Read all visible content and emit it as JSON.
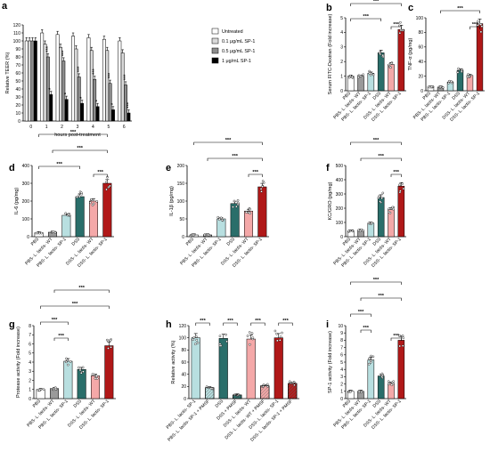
{
  "colors": [
    "#ffffff",
    "#9a9a9a",
    "#b8dfe0",
    "#2a6e6a",
    "#f4a8a8",
    "#b01818"
  ],
  "xcats": [
    "PBS",
    "PBS- L. lactis- WT",
    "PBS- L. lactis- SP-1",
    "DSS",
    "DSS- L. lactis- WT",
    "DSS- L. lactis- SP-1"
  ],
  "hcats": [
    "PBS- L. lactis- SP-1",
    "PBS- L. lactis- SP-1 + PMSF",
    "DSS",
    "DSS + PMSF",
    "DSS- L. lactis- WT",
    "DSS- L. lactis- WT + PMSF",
    "DSS- L. lactis- SP-1",
    "DSS- L. lactis- SP-1 + PMSF"
  ],
  "sig": "***",
  "chart_data": [
    {
      "panel": "a",
      "type": "bar",
      "ylabel": "Relative TEER (%)",
      "xlabel": "hours post-treatment",
      "ylim": [
        0,
        120
      ],
      "yticks": [
        0,
        10,
        20,
        30,
        40,
        50,
        60,
        70,
        80,
        90,
        100,
        110,
        120
      ],
      "categories": [
        "0",
        "1",
        "2",
        "3",
        "4",
        "5",
        "6"
      ],
      "series": [
        {
          "name": "Untreated",
          "values": [
            100,
            110,
            108,
            106,
            104,
            102,
            100
          ]
        },
        {
          "name": "0.1 μg/mL SP-1",
          "values": [
            100,
            96,
            92,
            90,
            88,
            88,
            85
          ]
        },
        {
          "name": "0.5 μg/mL SP-1",
          "values": [
            100,
            80,
            75,
            55,
            52,
            47,
            45
          ]
        },
        {
          "name": "1 μg/mL SP-1",
          "values": [
            100,
            33,
            27,
            22,
            18,
            14,
            10
          ]
        }
      ],
      "annotations": [
        "***",
        "*",
        "***",
        "*",
        "***",
        "*",
        "***",
        "*",
        "***",
        "*",
        "***",
        "***"
      ]
    },
    {
      "panel": "b",
      "type": "bar",
      "ylabel": "Serum FITC-Dextran (Fold increase)",
      "ylim": [
        0,
        5
      ],
      "yticks": [
        0,
        1,
        2,
        3,
        4,
        5
      ],
      "values": [
        1.0,
        1.0,
        1.2,
        2.6,
        1.8,
        4.2
      ]
    },
    {
      "panel": "c",
      "type": "bar",
      "ylabel": "TNF-α (pg/mg)",
      "ylim": [
        0,
        100
      ],
      "yticks": [
        0,
        20,
        40,
        60,
        80,
        100
      ],
      "values": [
        5,
        5,
        12,
        28,
        21,
        92
      ]
    },
    {
      "panel": "d",
      "type": "bar",
      "ylabel": "IL-6 (pg/mg)",
      "ylim": [
        0,
        400
      ],
      "yticks": [
        0,
        100,
        200,
        300,
        400
      ],
      "values": [
        22,
        25,
        120,
        225,
        200,
        300
      ]
    },
    {
      "panel": "e",
      "type": "bar",
      "ylabel": "IL-1β (pg/mg)",
      "ylim": [
        0,
        200
      ],
      "yticks": [
        0,
        50,
        100,
        150,
        200
      ],
      "values": [
        5,
        5,
        50,
        93,
        72,
        140
      ]
    },
    {
      "panel": "f",
      "type": "bar",
      "ylabel": "KC/GRO (pg/mg)",
      "ylim": [
        0,
        500
      ],
      "yticks": [
        0,
        100,
        200,
        300,
        400,
        500
      ],
      "values": [
        40,
        45,
        95,
        275,
        190,
        355
      ]
    },
    {
      "panel": "g",
      "type": "bar",
      "ylabel": "Protease activity (Fold increase)",
      "ylim": [
        0,
        8
      ],
      "yticks": [
        0,
        1,
        2,
        3,
        4,
        5,
        6,
        7,
        8
      ],
      "values": [
        1.0,
        1.1,
        4.1,
        3.2,
        2.5,
        5.8
      ]
    },
    {
      "panel": "h",
      "type": "bar",
      "ylabel": "Relative activity (%)",
      "ylim": [
        0,
        120
      ],
      "yticks": [
        0,
        20,
        40,
        60,
        80,
        100,
        120
      ],
      "values": [
        100,
        18,
        99,
        6,
        98,
        21,
        100,
        25
      ]
    },
    {
      "panel": "i",
      "type": "bar",
      "ylabel": "SP-1 activity (Fold increase)",
      "ylim": [
        0,
        10
      ],
      "yticks": [
        0,
        1,
        2,
        3,
        4,
        5,
        6,
        7,
        8,
        9,
        10
      ],
      "values": [
        1.0,
        1.0,
        5.3,
        3.1,
        2.1,
        8.0
      ]
    }
  ]
}
